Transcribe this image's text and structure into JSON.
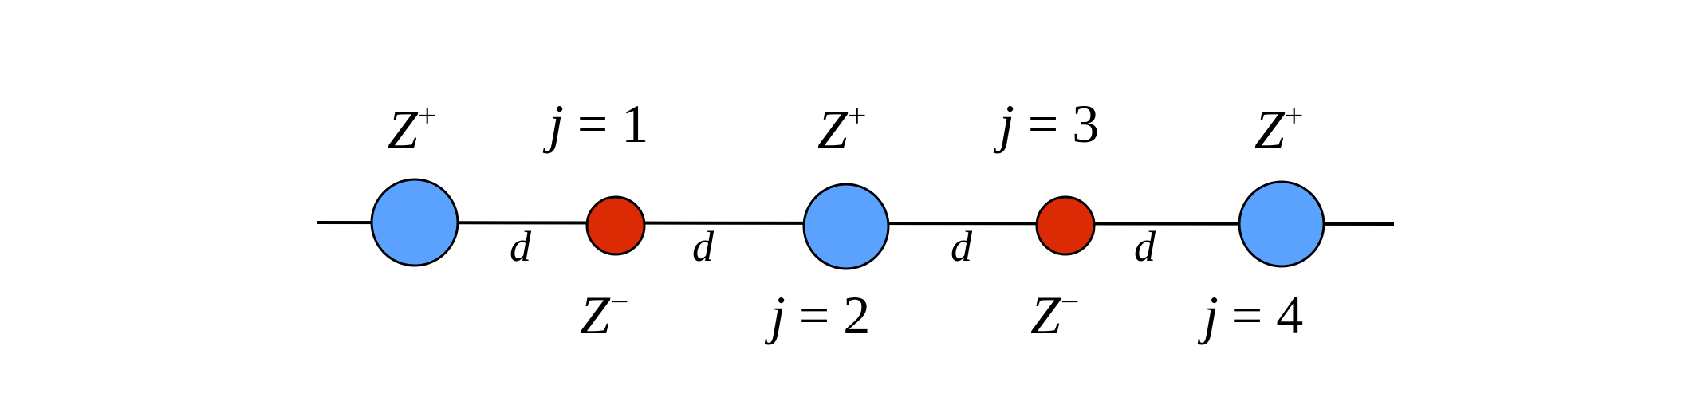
{
  "colors": {
    "large_ion": "#5ba2ff",
    "small_ion": "#dc2a04",
    "line": "#000000",
    "background": "#ffffff"
  },
  "labels": {
    "top": [
      {
        "kind": "charge",
        "symbol": "Z",
        "sign": "+"
      },
      {
        "kind": "index",
        "symbol": "j",
        "eq": " = ",
        "value": "1"
      },
      {
        "kind": "charge",
        "symbol": "Z",
        "sign": "+"
      },
      {
        "kind": "index",
        "symbol": "j",
        "eq": " = ",
        "value": "3"
      },
      {
        "kind": "charge",
        "symbol": "Z",
        "sign": "+"
      }
    ],
    "bottom": [
      {
        "kind": "charge",
        "symbol": "Z",
        "sign": "−"
      },
      {
        "kind": "index",
        "symbol": "j",
        "eq": " = ",
        "value": "2"
      },
      {
        "kind": "charge",
        "symbol": "Z",
        "sign": "−"
      },
      {
        "kind": "index",
        "symbol": "j",
        "eq": " = ",
        "value": "4"
      }
    ],
    "spacing": [
      "d",
      "d",
      "d",
      "d"
    ]
  }
}
